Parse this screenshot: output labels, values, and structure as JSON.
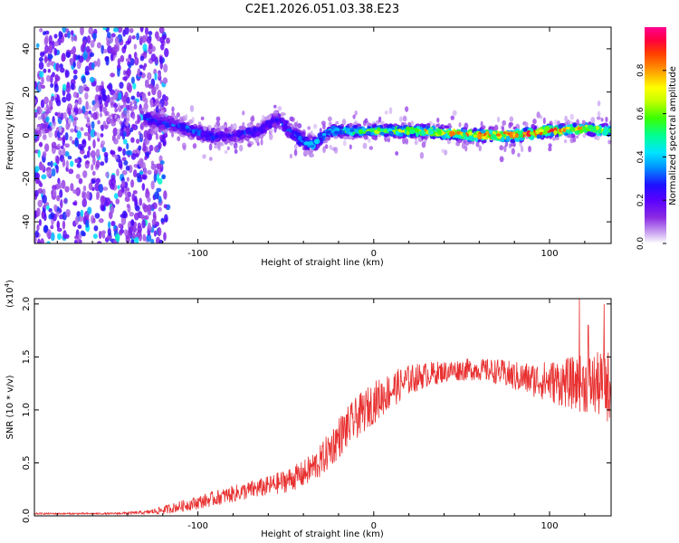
{
  "title": "C2E1.2026.051.03.38.E23",
  "chart_data": [
    {
      "type": "heatmap",
      "id": "spectrogram",
      "xlabel": "Height of straight line (km)",
      "ylabel": "Frequency (Hz)",
      "xlim": [
        -193,
        135
      ],
      "ylim": [
        -50,
        50
      ],
      "xticks": [
        -100,
        0,
        100
      ],
      "yticks": [
        -40,
        -20,
        0,
        20,
        40
      ],
      "xtick_labels": [
        "-100",
        "0",
        "100"
      ],
      "ytick_labels": [
        "-40",
        "-20",
        "0",
        "20",
        "40"
      ],
      "colorbar": {
        "label": "Normalized spectral amplitude",
        "range": [
          0,
          1
        ],
        "ticks": [
          0.0,
          0.2,
          0.4,
          0.6,
          0.8
        ],
        "tick_labels": [
          "0.0",
          "0.2",
          "0.4",
          "0.6",
          "0.8"
        ],
        "colormap": [
          "#ffffff",
          "#c9a4f0",
          "#8b2be2",
          "#5a00ff",
          "#1f10ff",
          "#0090ff",
          "#00e5ff",
          "#00ff90",
          "#3cff00",
          "#c8ff00",
          "#ffff00",
          "#ff9a00",
          "#ff3c00",
          "#ff0040",
          "#ff0090"
        ]
      },
      "signal_trace": [
        {
          "x": -130,
          "freq": 8,
          "width": 6,
          "amp": 0.3
        },
        {
          "x": -110,
          "freq": 4,
          "width": 5,
          "amp": 0.35
        },
        {
          "x": -95,
          "freq": 0,
          "width": 5,
          "amp": 0.35
        },
        {
          "x": -80,
          "freq": 0,
          "width": 5,
          "amp": 0.3
        },
        {
          "x": -65,
          "freq": 2,
          "width": 5,
          "amp": 0.32
        },
        {
          "x": -55,
          "freq": 8,
          "width": 5,
          "amp": 0.3
        },
        {
          "x": -45,
          "freq": 0,
          "width": 6,
          "amp": 0.35
        },
        {
          "x": -35,
          "freq": -5,
          "width": 6,
          "amp": 0.4
        },
        {
          "x": -25,
          "freq": 2,
          "width": 4,
          "amp": 0.45
        },
        {
          "x": 0,
          "freq": 2,
          "width": 4,
          "amp": 0.6
        },
        {
          "x": 30,
          "freq": 2,
          "width": 4,
          "amp": 0.75
        },
        {
          "x": 55,
          "freq": 0,
          "width": 4,
          "amp": 0.85
        },
        {
          "x": 80,
          "freq": 0,
          "width": 4,
          "amp": 0.9
        },
        {
          "x": 100,
          "freq": 2,
          "width": 4,
          "amp": 0.85
        },
        {
          "x": 120,
          "freq": 3,
          "width": 4,
          "amp": 0.75
        },
        {
          "x": 135,
          "freq": 2,
          "width": 4,
          "amp": 0.65
        }
      ],
      "noise_region": {
        "x_from": -193,
        "x_to": -125,
        "amp_range": [
          0.1,
          0.35
        ]
      }
    },
    {
      "type": "line",
      "id": "snr",
      "xlabel": "Height of straight line (km)",
      "ylabel": "SNR (10 * v/v)",
      "multiplier_label": "(x10",
      "multiplier_exponent": "4",
      "multiplier_close": ")",
      "xlim": [
        -193,
        135
      ],
      "ylim": [
        0,
        2.05
      ],
      "xticks": [
        -100,
        0,
        100
      ],
      "yticks": [
        0.0,
        0.5,
        1.0,
        1.5,
        2.0
      ],
      "xtick_labels": [
        "-100",
        "0",
        "100"
      ],
      "ytick_labels": [
        "0.0",
        "0.5",
        "1.0",
        "1.5",
        "2.0"
      ],
      "color": "#e83030",
      "envelope": {
        "x": [
          -193,
          -150,
          -130,
          -120,
          -100,
          -80,
          -60,
          -50,
          -40,
          -30,
          -20,
          -10,
          0,
          10,
          20,
          30,
          40,
          50,
          60,
          70,
          80,
          90,
          100,
          110,
          120,
          130,
          135
        ],
        "mean": [
          0.02,
          0.02,
          0.03,
          0.05,
          0.12,
          0.2,
          0.27,
          0.32,
          0.38,
          0.5,
          0.72,
          0.9,
          1.05,
          1.17,
          1.27,
          1.32,
          1.35,
          1.37,
          1.37,
          1.35,
          1.3,
          1.27,
          1.25,
          1.23,
          1.22,
          1.2,
          1.18
        ],
        "spread": [
          0.01,
          0.01,
          0.02,
          0.05,
          0.08,
          0.1,
          0.12,
          0.14,
          0.16,
          0.2,
          0.25,
          0.25,
          0.25,
          0.22,
          0.18,
          0.15,
          0.13,
          0.13,
          0.13,
          0.15,
          0.18,
          0.2,
          0.25,
          0.3,
          0.35,
          0.4,
          0.45
        ]
      },
      "peaks": [
        {
          "x": 117,
          "y": 2.05
        },
        {
          "x": 131,
          "y": 2.0
        },
        {
          "x": 122,
          "y": 1.8
        }
      ]
    }
  ]
}
